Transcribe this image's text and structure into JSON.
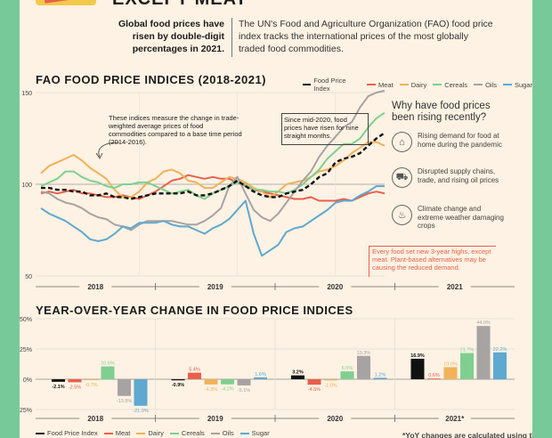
{
  "headline": "EXCEPT MEAT",
  "intro": {
    "left": "Global food prices have risen by double-digit percentages in 2021.",
    "right": "The UN's Food and Agriculture Organization (FAO) food price index tracks the international prices of the most globally traded food commodities."
  },
  "colors": {
    "Food Price Index": "#111111",
    "Meat": "#e8604c",
    "Dairy": "#f0b25a",
    "Cereals": "#7fcf90",
    "Oils": "#a7a3a3",
    "Sugar": "#5fa8cf",
    "accent": "#78c999",
    "background": "#fdf2e3"
  },
  "legend": [
    "Food Price Index",
    "Meat",
    "Dairy",
    "Cereals",
    "Oils",
    "Sugar"
  ],
  "sidebar": {
    "title": "Why have food prices been rising recently?",
    "items": [
      {
        "icon": "house-icon",
        "text": "Rising demand for food at home during the pandemic"
      },
      {
        "icon": "truck-icon",
        "text": "Disrupted supply chains, trade, and rising oil prices"
      },
      {
        "icon": "fire-icon",
        "text": "Climate change and extreme weather damaging crops"
      }
    ]
  },
  "annotations": {
    "indices_note": "These indices measure the change in trade-weighted average prices of food commodities compared to a base time period (2014-2016).",
    "mid2020_note": "Since mid-2020, food prices have risen for nine straight months.",
    "meat_note": "Every food set new 3-year highs, except meat. Plant-based alternatives may be causing the reduced demand."
  },
  "footnote": "*YoY changes are calculated using the",
  "chart_data": [
    {
      "type": "line",
      "title": "FAO FOOD PRICE INDICES (2018-2021)",
      "ylim": [
        50,
        150
      ],
      "yticks": [
        50,
        100,
        150
      ],
      "x_groups": [
        "2018",
        "2019",
        "2020",
        "2021"
      ],
      "x": [
        "2018-01",
        "2018-02",
        "2018-03",
        "2018-04",
        "2018-05",
        "2018-06",
        "2018-07",
        "2018-08",
        "2018-09",
        "2018-10",
        "2018-11",
        "2018-12",
        "2019-01",
        "2019-02",
        "2019-03",
        "2019-04",
        "2019-05",
        "2019-06",
        "2019-07",
        "2019-08",
        "2019-09",
        "2019-10",
        "2019-11",
        "2019-12",
        "2020-01",
        "2020-02",
        "2020-03",
        "2020-04",
        "2020-05",
        "2020-06",
        "2020-07",
        "2020-08",
        "2020-09",
        "2020-10",
        "2020-11",
        "2020-12",
        "2021-01",
        "2021-02",
        "2021-03",
        "2021-04",
        "2021-05",
        "2021-06",
        "2021-07"
      ],
      "series": [
        {
          "name": "Food Price Index",
          "values": [
            98,
            98,
            97,
            97,
            96,
            96,
            94,
            94,
            95,
            93,
            93,
            92,
            93,
            94,
            95,
            95,
            95,
            95,
            96,
            94,
            94,
            95,
            97,
            99,
            102,
            99,
            96,
            94,
            93,
            93,
            95,
            96,
            97,
            100,
            104,
            106,
            112,
            114,
            115,
            117,
            121,
            125,
            128
          ]
        },
        {
          "name": "Meat",
          "values": [
            95,
            96,
            95,
            96,
            97,
            95,
            95,
            94,
            93,
            93,
            94,
            93,
            92,
            94,
            96,
            99,
            102,
            103,
            105,
            104,
            103,
            104,
            103,
            103,
            101,
            99,
            97,
            96,
            95,
            94,
            93,
            92,
            92,
            93,
            91,
            91,
            91,
            92,
            91,
            93,
            95,
            96,
            95
          ]
        },
        {
          "name": "Dairy",
          "values": [
            106,
            110,
            112,
            114,
            116,
            113,
            109,
            106,
            103,
            97,
            93,
            93,
            96,
            101,
            103,
            107,
            108,
            106,
            102,
            101,
            98,
            98,
            101,
            104,
            103,
            101,
            98,
            96,
            93,
            96,
            100,
            101,
            102,
            104,
            107,
            108,
            110,
            113,
            117,
            120,
            123,
            123,
            121
          ]
        },
        {
          "name": "Cereals",
          "values": [
            99,
            101,
            103,
            107,
            107,
            104,
            102,
            101,
            99,
            98,
            100,
            100,
            101,
            101,
            99,
            97,
            95,
            96,
            97,
            94,
            92,
            95,
            97,
            99,
            101,
            100,
            97,
            97,
            96,
            96,
            95,
            97,
            100,
            104,
            108,
            114,
            118,
            122,
            122,
            125,
            131,
            136,
            139
          ]
        },
        {
          "name": "Oils",
          "values": [
            96,
            95,
            92,
            90,
            89,
            87,
            84,
            82,
            81,
            78,
            77,
            75,
            78,
            80,
            80,
            80,
            80,
            79,
            78,
            78,
            80,
            83,
            87,
            99,
            104,
            95,
            86,
            82,
            80,
            84,
            90,
            96,
            102,
            107,
            115,
            121,
            126,
            131,
            134,
            142,
            148,
            150,
            151
          ]
        },
        {
          "name": "Sugar",
          "values": [
            87,
            84,
            82,
            80,
            77,
            74,
            70,
            69,
            70,
            73,
            77,
            76,
            79,
            79,
            79,
            80,
            78,
            77,
            77,
            75,
            73,
            76,
            78,
            81,
            86,
            91,
            73,
            61,
            64,
            67,
            74,
            76,
            77,
            80,
            83,
            86,
            90,
            91,
            91,
            94,
            96,
            99,
            99
          ]
        }
      ]
    },
    {
      "type": "bar",
      "title": "YEAR-OVER-YEAR CHANGE IN FOOD PRICE INDICES",
      "ylim": [
        -25,
        50
      ],
      "yticks": [
        "-25%",
        "0%",
        "25%",
        "50%"
      ],
      "categories": [
        "2018",
        "2019",
        "2020",
        "2021*"
      ],
      "series": [
        {
          "name": "Food Price Index",
          "values": [
            -2.1,
            -0.9,
            3.2,
            16.9
          ],
          "labels": [
            "-2.1%",
            "-0.9%",
            "3.2%",
            "16.9%"
          ]
        },
        {
          "name": "Meat",
          "values": [
            -2.5,
            5.4,
            -4.5,
            0.6
          ],
          "labels": [
            "-2.5%",
            "5.4%",
            "-4.5%",
            "0.6%"
          ]
        },
        {
          "name": "Dairy",
          "values": [
            -0.7,
            -4.3,
            -1.0,
            10.0
          ],
          "labels": [
            "-0.7%",
            "-4.3%",
            "-1.0%",
            "10.0%"
          ]
        },
        {
          "name": "Cereals",
          "values": [
            10.6,
            -4.2,
            6.5,
            21.7
          ],
          "labels": [
            "10.6%",
            "-4.2%",
            "6.5%",
            "21.7%"
          ]
        },
        {
          "name": "Oils",
          "values": [
            -13.8,
            -5.1,
            19.3,
            44.0
          ],
          "labels": [
            "-13.8%",
            "-5.1%",
            "19.3%",
            "44.0%"
          ]
        },
        {
          "name": "Sugar",
          "values": [
            -21.9,
            1.6,
            1.2,
            22.2
          ],
          "labels": [
            "-21.9%",
            "1.6%",
            "1.2%",
            "22.2%"
          ]
        }
      ]
    }
  ]
}
